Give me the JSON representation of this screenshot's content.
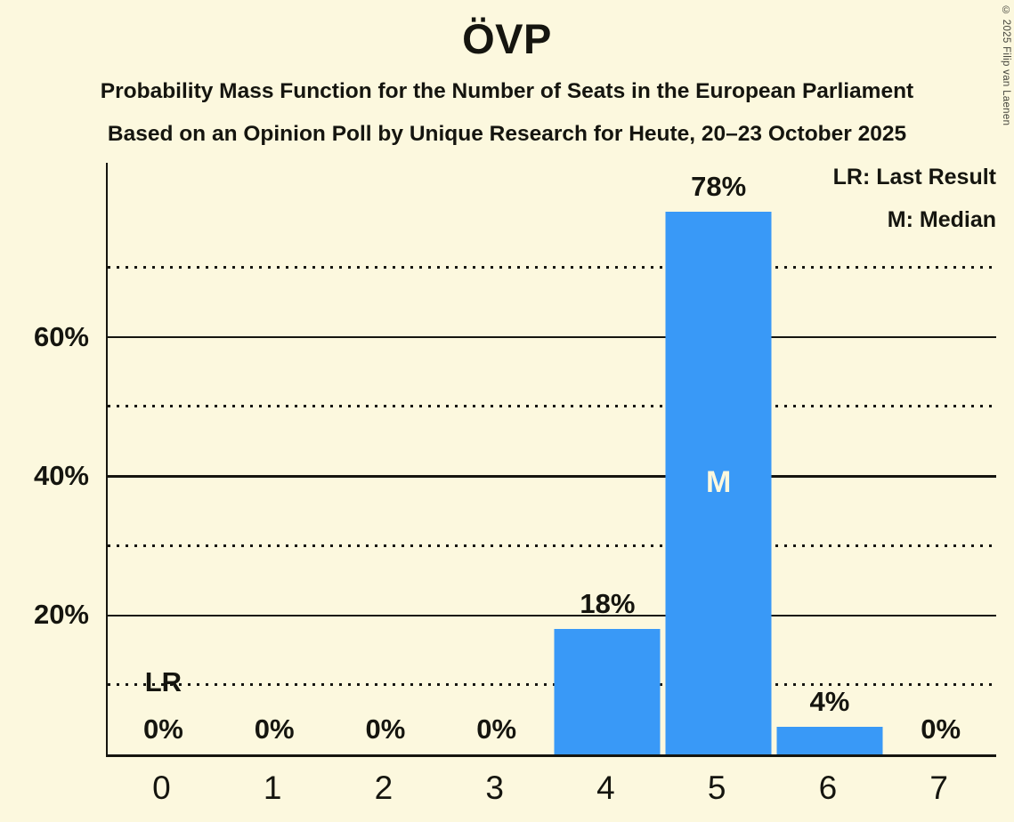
{
  "title": "ÖVP",
  "subtitle1": "Probability Mass Function for the Number of Seats in the European Parliament",
  "subtitle2": "Based on an Opinion Poll by Unique Research for Heute, 20–23 October 2025",
  "legend": {
    "lr": "LR: Last Result",
    "m": "M: Median"
  },
  "copyright": "© 2025 Filip van Laenen",
  "annotations": {
    "median_marker": "M",
    "last_result_marker": "LR"
  },
  "colors": {
    "background": "#FCF8DE",
    "bar": "#3999F7",
    "text": "#15150f"
  },
  "y_axis": {
    "tick_labels": [
      "20%",
      "40%",
      "60%"
    ]
  },
  "chart_data": {
    "type": "bar",
    "title": "ÖVP",
    "xlabel": "",
    "ylabel": "",
    "categories": [
      0,
      1,
      2,
      3,
      4,
      5,
      6,
      7
    ],
    "x_labels": [
      "0",
      "1",
      "2",
      "3",
      "4",
      "5",
      "6",
      "7"
    ],
    "values": [
      0,
      0,
      0,
      0,
      18,
      78,
      4,
      0
    ],
    "bar_labels": [
      "0%",
      "0%",
      "0%",
      "0%",
      "18%",
      "78%",
      "4%",
      "0%"
    ],
    "ylim": [
      0,
      85
    ],
    "y_ticks_labeled": [
      20,
      40,
      60
    ],
    "gridlines": [
      {
        "pct": 10,
        "style": "dotted"
      },
      {
        "pct": 20,
        "style": "solid"
      },
      {
        "pct": 30,
        "style": "dotted"
      },
      {
        "pct": 40,
        "style": "solid"
      },
      {
        "pct": 50,
        "style": "dotted"
      },
      {
        "pct": 60,
        "style": "solid"
      },
      {
        "pct": 70,
        "style": "dotted"
      }
    ],
    "grid_on": true,
    "legend_position": "top-right",
    "median_seats": 5,
    "last_result_seats": 0
  }
}
